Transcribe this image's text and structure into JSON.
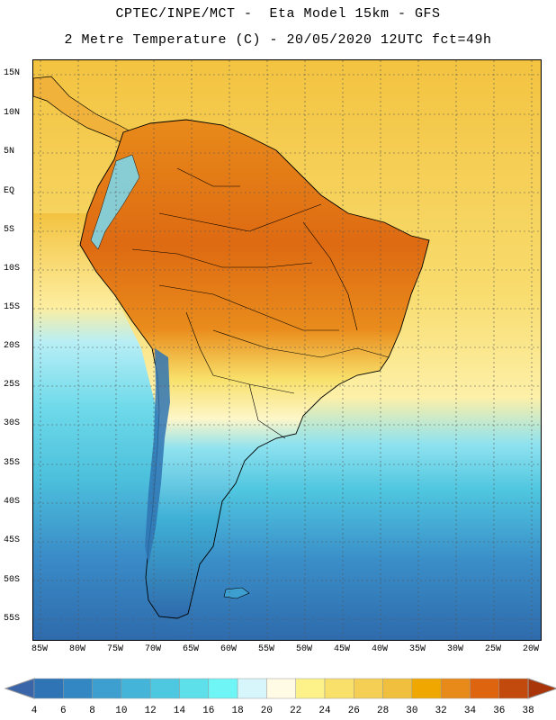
{
  "header": {
    "line1": "CPTEC/INPE/MCT -  Eta Model 15km - GFS",
    "line2": "2 Metre Temperature (C) - 20/05/2020 12UTC fct=49h"
  },
  "map": {
    "lat_labels": [
      "15N",
      "10N",
      "5N",
      "EQ",
      "5S",
      "10S",
      "15S",
      "20S",
      "25S",
      "30S",
      "35S",
      "40S",
      "45S",
      "50S",
      "55S"
    ],
    "lon_labels": [
      "85W",
      "80W",
      "75W",
      "70W",
      "65W",
      "60W",
      "55W",
      "50W",
      "45W",
      "40W",
      "35W",
      "30W",
      "25W",
      "20W"
    ],
    "ocean_colors": {
      "tropical": "#f5c84a",
      "subtropical": "#fdee9c",
      "midlat": "#4fc8e0",
      "south": "#3a8cc8",
      "deep_south": "#2e6fb0"
    }
  },
  "legend": {
    "values": [
      "4",
      "6",
      "8",
      "10",
      "12",
      "14",
      "16",
      "18",
      "20",
      "22",
      "24",
      "26",
      "28",
      "30",
      "32",
      "34",
      "36",
      "38"
    ],
    "colors": [
      "#3a65a8",
      "#2f74b4",
      "#3388c4",
      "#3d9fd0",
      "#44b4d9",
      "#4ec8e0",
      "#5ee0ea",
      "#6ff5f5",
      "#d6f6fb",
      "#fffbe4",
      "#fdf28a",
      "#f8e06a",
      "#f4cf54",
      "#f0bf3d",
      "#f0a800",
      "#e88a1a",
      "#de6410",
      "#c24a0c",
      "#a8360a"
    ]
  }
}
